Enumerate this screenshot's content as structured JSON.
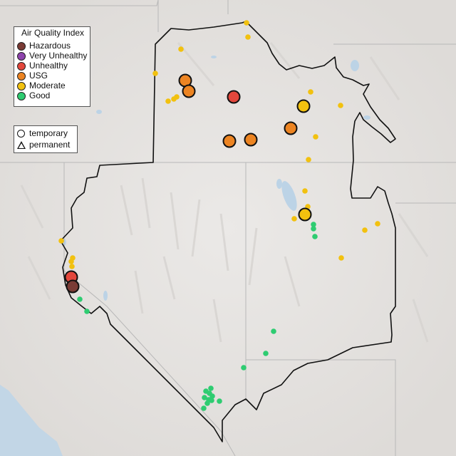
{
  "map": {
    "colors": {
      "land": "#e6e4e2",
      "water": "#bcd3e6",
      "ocean": "#c2d6e6",
      "boundary": "#111111",
      "state_lines": "#b8b8b8"
    }
  },
  "legend_aqi": {
    "title": "Air Quality Index",
    "items": [
      {
        "label": "Hazardous",
        "color": "#7a3b35"
      },
      {
        "label": "Very Unhealthy",
        "color": "#8e44ad"
      },
      {
        "label": "Unhealthy",
        "color": "#e3473c"
      },
      {
        "label": "USG",
        "color": "#ec8422"
      },
      {
        "label": "Moderate",
        "color": "#f2c10f"
      },
      {
        "label": "Good",
        "color": "#2ecc71"
      }
    ]
  },
  "legend_type": {
    "items": [
      {
        "label": "temporary",
        "shape": "circle"
      },
      {
        "label": "permanent",
        "shape": "triangle"
      }
    ]
  },
  "monitors": {
    "large": [
      {
        "cat": "USG"
      },
      {
        "cat": "USG"
      },
      {
        "cat": "Unhealthy"
      },
      {
        "cat": "Moderate"
      },
      {
        "cat": "USG"
      },
      {
        "cat": "USG"
      },
      {
        "cat": "USG"
      },
      {
        "cat": "Moderate"
      },
      {
        "cat": "Unhealthy"
      },
      {
        "cat": "Hazardous"
      }
    ]
  }
}
